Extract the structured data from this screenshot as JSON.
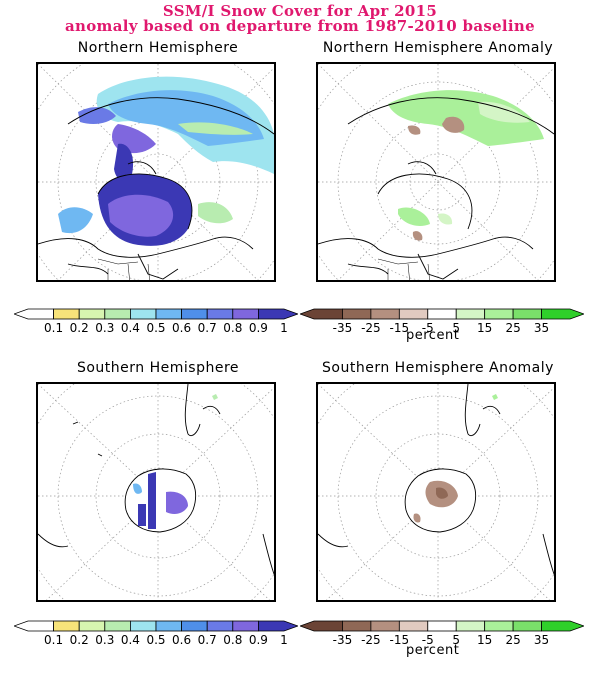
{
  "header": {
    "line1": "SSM/I Snow Cover for Apr 2015",
    "line2": "anomaly based on departure from 1987-2010 baseline"
  },
  "panels": {
    "nh": "Northern Hemisphere",
    "nh_anom": "Northern Hemisphere Anomaly",
    "sh": "Southern Hemisphere",
    "sh_anom": "Southern Hemisphere Anomaly"
  },
  "cover_scale": {
    "labels": [
      "0.1",
      "0.2",
      "0.3",
      "0.4",
      "0.5",
      "0.6",
      "0.7",
      "0.8",
      "0.9",
      "1"
    ],
    "colors": [
      "#ffffff",
      "#f7e37a",
      "#d7f5b0",
      "#b8ecb0",
      "#9ee4ef",
      "#6fb8f2",
      "#4f8fe9",
      "#6a7ae6",
      "#7f67de",
      "#3b38b4"
    ]
  },
  "anomaly_scale": {
    "labels": [
      "-35",
      "-25",
      "-15",
      "-5",
      "5",
      "15",
      "25",
      "35"
    ],
    "colors": [
      "#6b4436",
      "#8f6856",
      "#b49080",
      "#e1cac0",
      "#ffffff",
      "#d4f5c6",
      "#aaf09a",
      "#7ae06a",
      "#2fcf2a"
    ],
    "unit": "percent"
  },
  "colors": {
    "title": "#e0186e",
    "land": "#000000",
    "snow_high": "#3b38b4",
    "anom_pos": "#aaf09a",
    "anom_neg": "#b49080"
  }
}
